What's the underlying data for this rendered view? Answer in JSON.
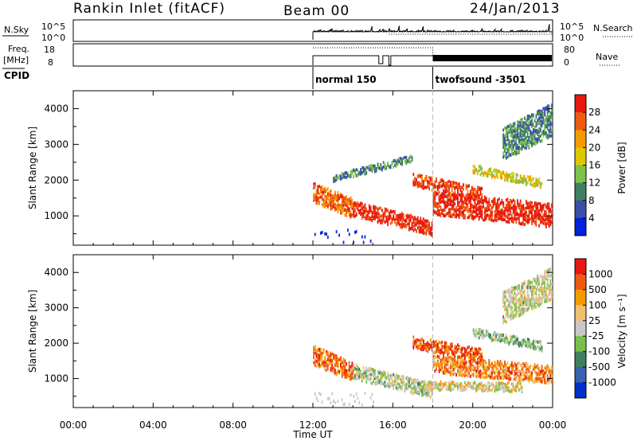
{
  "header": {
    "title": "Rankin Inlet (fitACF)",
    "beam": "Beam 00",
    "date": "24/Jan/2013"
  },
  "noise_panel": {
    "left_label": "N.Sky",
    "left_ticks": [
      "10^5",
      "10^0"
    ],
    "right_label": "N.Search",
    "right_ticks": [
      "10^5",
      "10^0"
    ]
  },
  "freq_panel": {
    "left_label_1": "Freq.",
    "left_label_2": "[MHz]",
    "left_ticks": [
      "18",
      "8"
    ],
    "right_label": "Nave",
    "right_ticks": [
      "80",
      "0"
    ]
  },
  "cpid": {
    "label": "CPID",
    "modes": [
      {
        "name": "normal 150",
        "start_hour": 12.0
      },
      {
        "name": "twofsound -3501",
        "start_hour": 18.0
      }
    ]
  },
  "x_axis": {
    "label": "Time UT",
    "ticks": [
      "00:00",
      "04:00",
      "08:00",
      "12:00",
      "16:00",
      "20:00",
      "00:00"
    ]
  },
  "chart_data": [
    {
      "type": "heatmap",
      "name": "power",
      "ylabel": "Slant Range [km]",
      "ylim": [
        180,
        4500
      ],
      "yticks": [
        "1000",
        "2000",
        "3000",
        "4000"
      ],
      "xlim_hours": [
        0,
        24
      ],
      "data_start_hour": 12,
      "colorbar_label": "Power [dB]",
      "colorbar_ticks": [
        "28",
        "24",
        "20",
        "16",
        "12",
        "8",
        "4"
      ],
      "colorscale": [
        "#0022dd",
        "#3a4fa8",
        "#3f8060",
        "#7dc24a",
        "#e0c800",
        "#f59a00",
        "#ef5a10",
        "#e81a10"
      ],
      "scatter_bands": [
        {
          "t0": 12.0,
          "t1": 14.0,
          "r_start": 1650,
          "r_end": 1200,
          "width": 550,
          "level": 0.8
        },
        {
          "t0": 14.0,
          "t1": 18.0,
          "r_start": 1200,
          "r_end": 650,
          "width": 420,
          "level": 0.93
        },
        {
          "t0": 18.0,
          "t1": 24.0,
          "r_start": 1350,
          "r_end": 1000,
          "width": 650,
          "level": 0.95
        },
        {
          "t0": 17.0,
          "t1": 20.5,
          "r_start": 2000,
          "r_end": 1600,
          "width": 350,
          "level": 0.9
        },
        {
          "t0": 20.0,
          "t1": 23.5,
          "r_start": 2300,
          "r_end": 1900,
          "width": 250,
          "level": 0.55
        },
        {
          "t0": 13.0,
          "t1": 17.0,
          "r_start": 2050,
          "r_end": 2600,
          "width": 200,
          "level": 0.3
        },
        {
          "t0": 21.5,
          "t1": 24.0,
          "r_start": 3000,
          "r_end": 3700,
          "width": 900,
          "level": 0.3
        }
      ]
    },
    {
      "type": "heatmap",
      "name": "velocity",
      "ylabel": "Slant Range [km]",
      "ylim": [
        180,
        4500
      ],
      "yticks": [
        "1000",
        "2000",
        "3000",
        "4000"
      ],
      "xlim_hours": [
        0,
        24
      ],
      "data_start_hour": 12,
      "colorbar_label": "Velocity [m s⁻¹]",
      "colorbar_ticks": [
        "1000",
        "500",
        "100",
        "25",
        "-25",
        "-100",
        "-500",
        "-1000"
      ],
      "colorscale": [
        "#e81a10",
        "#f05a10",
        "#f59a00",
        "#f0c070",
        "#c8c8c8",
        "#78c04a",
        "#3f8060",
        "#3a60b0",
        "#0030cc"
      ],
      "scatter_bands": [
        {
          "t0": 12.0,
          "t1": 14.0,
          "r_start": 1650,
          "r_end": 1200,
          "width": 550,
          "level": 0.22
        },
        {
          "t0": 14.0,
          "t1": 18.0,
          "r_start": 1200,
          "r_end": 650,
          "width": 420,
          "level": 0.55
        },
        {
          "t0": 17.5,
          "t1": 22.5,
          "r_start": 800,
          "r_end": 750,
          "width": 250,
          "level": 0.45
        },
        {
          "t0": 18.0,
          "t1": 24.0,
          "r_start": 1400,
          "r_end": 1100,
          "width": 500,
          "level": 0.25
        },
        {
          "t0": 17.0,
          "t1": 20.5,
          "r_start": 2000,
          "r_end": 1650,
          "width": 350,
          "level": 0.15
        },
        {
          "t0": 20.0,
          "t1": 23.5,
          "r_start": 2300,
          "r_end": 1900,
          "width": 250,
          "level": 0.6
        },
        {
          "t0": 21.5,
          "t1": 24.0,
          "r_start": 3000,
          "r_end": 3700,
          "width": 900,
          "level": 0.5
        }
      ]
    }
  ]
}
